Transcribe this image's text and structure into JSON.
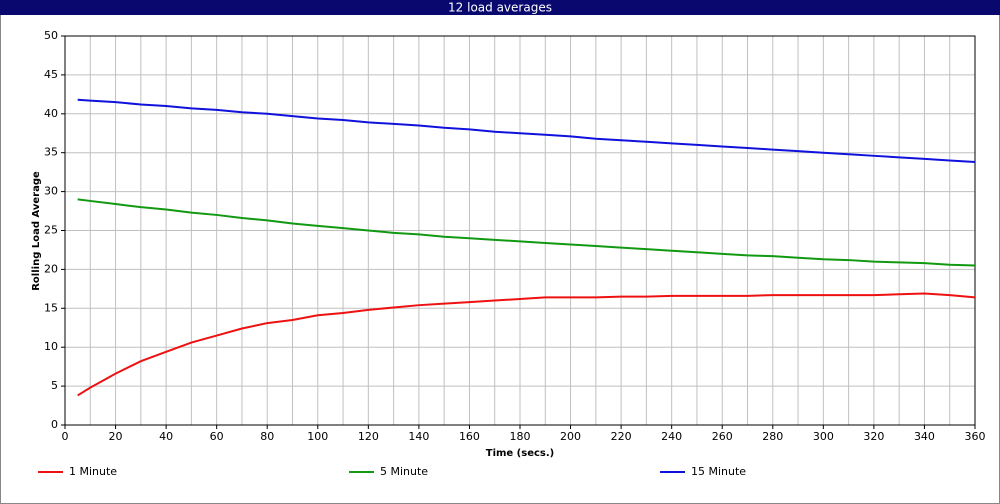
{
  "chart_data": {
    "type": "line",
    "title": "12 load averages",
    "x_label": "Time (secs.)",
    "y_label": "Rolling Load Average",
    "x": [
      5,
      10,
      20,
      30,
      40,
      50,
      60,
      70,
      80,
      90,
      100,
      110,
      120,
      130,
      140,
      150,
      160,
      170,
      180,
      190,
      200,
      210,
      220,
      230,
      240,
      250,
      260,
      270,
      280,
      290,
      300,
      310,
      320,
      330,
      340,
      350,
      360
    ],
    "series": [
      {
        "name": "1 Minute",
        "color": "#ee1111",
        "values": [
          3.8,
          4.8,
          6.6,
          8.2,
          9.4,
          10.6,
          11.5,
          12.4,
          13.1,
          13.5,
          14.1,
          14.4,
          14.8,
          15.1,
          15.4,
          15.6,
          15.8,
          16.0,
          16.2,
          16.4,
          16.4,
          16.4,
          16.5,
          16.5,
          16.6,
          16.6,
          16.6,
          16.6,
          16.7,
          16.7,
          16.7,
          16.7,
          16.7,
          16.8,
          16.9,
          16.7,
          16.4
        ]
      },
      {
        "name": "5 Minute",
        "color": "#119911",
        "values": [
          29.0,
          28.8,
          28.4,
          28.0,
          27.7,
          27.3,
          27.0,
          26.6,
          26.3,
          25.9,
          25.6,
          25.3,
          25.0,
          24.7,
          24.5,
          24.2,
          24.0,
          23.8,
          23.6,
          23.4,
          23.2,
          23.0,
          22.8,
          22.6,
          22.4,
          22.2,
          22.0,
          21.8,
          21.7,
          21.5,
          21.3,
          21.2,
          21.0,
          20.9,
          20.8,
          20.6,
          20.5
        ]
      },
      {
        "name": "15 Minute",
        "color": "#1111dd",
        "values": [
          41.8,
          41.7,
          41.5,
          41.2,
          41.0,
          40.7,
          40.5,
          40.2,
          40.0,
          39.7,
          39.4,
          39.2,
          38.9,
          38.7,
          38.5,
          38.2,
          38.0,
          37.7,
          37.5,
          37.3,
          37.1,
          36.8,
          36.6,
          36.4,
          36.2,
          36.0,
          35.8,
          35.6,
          35.4,
          35.2,
          35.0,
          34.8,
          34.6,
          34.4,
          34.2,
          34.0,
          33.8
        ]
      }
    ],
    "xlim": [
      0,
      360
    ],
    "ylim": [
      0,
      50
    ],
    "xticks": [
      0,
      20,
      40,
      60,
      80,
      100,
      120,
      140,
      160,
      180,
      200,
      220,
      240,
      260,
      280,
      300,
      320,
      340,
      360
    ],
    "xminorticks": [
      10,
      30,
      50,
      70,
      90,
      110,
      130,
      150,
      170,
      190,
      210,
      230,
      250,
      270,
      290,
      310,
      330,
      350
    ],
    "yticks": [
      0,
      5,
      10,
      15,
      20,
      25,
      30,
      35,
      40,
      45,
      50
    ],
    "grid": true,
    "legend": "bottom"
  }
}
